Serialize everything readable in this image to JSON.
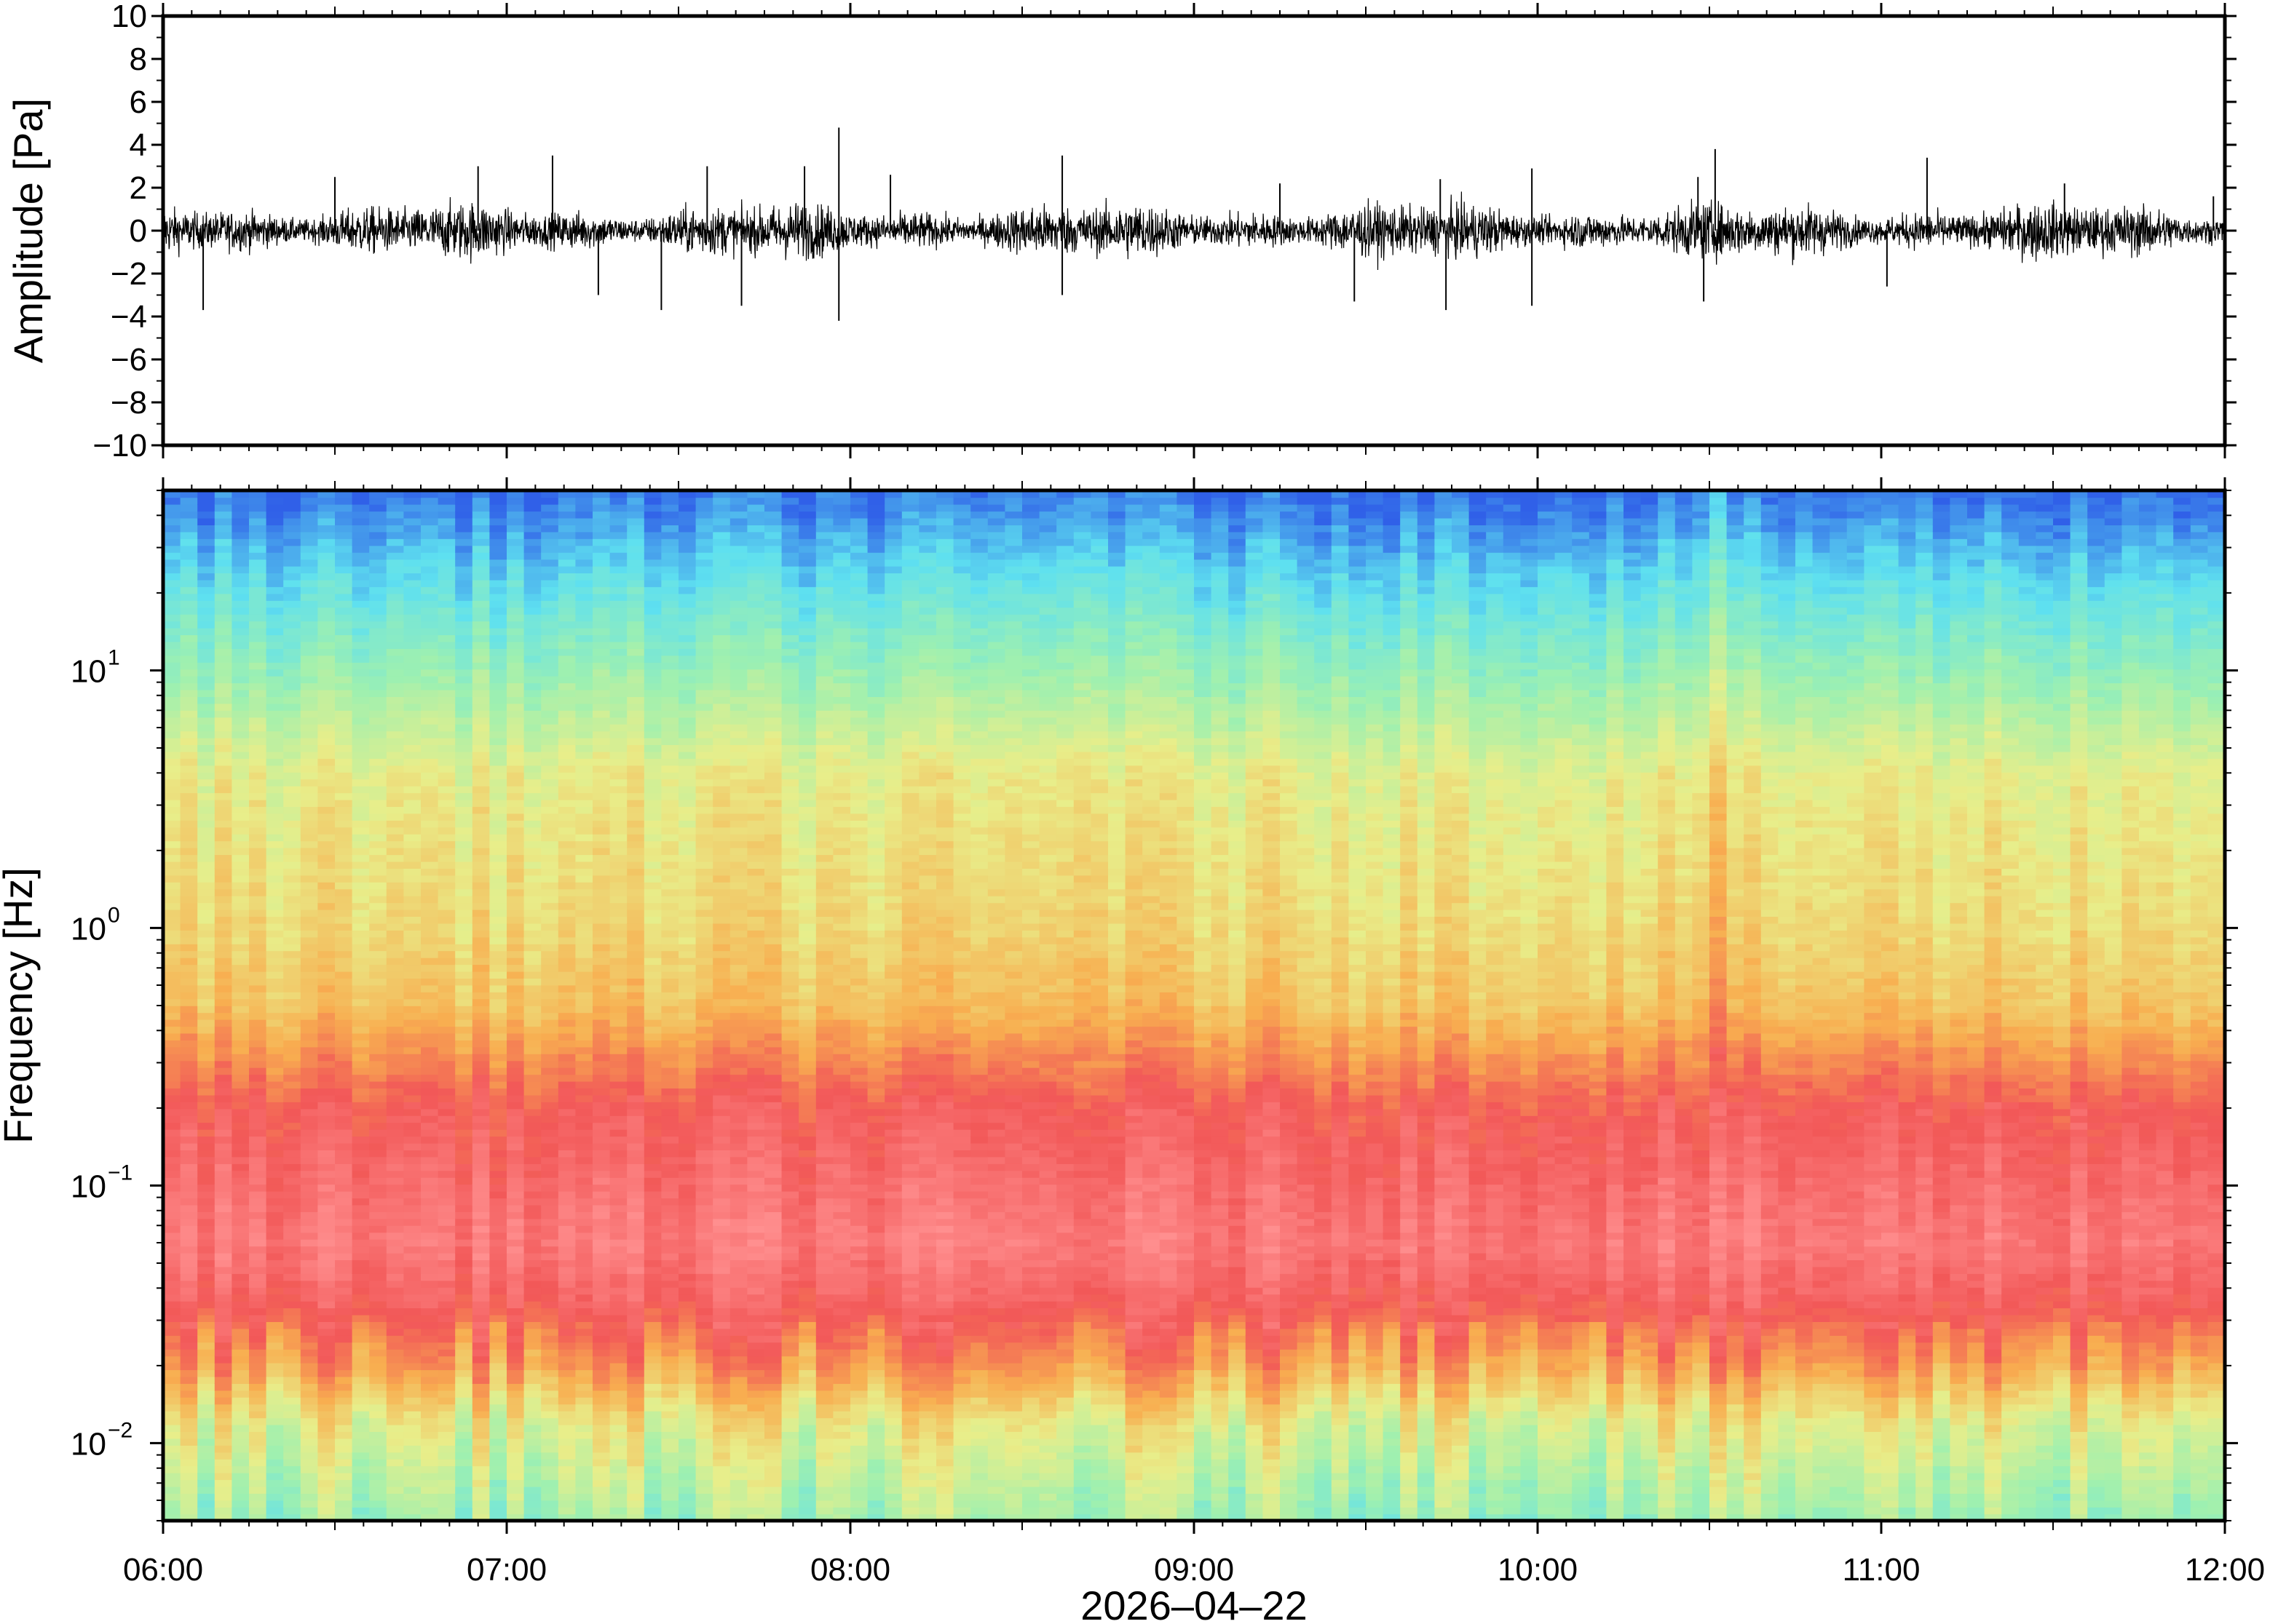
{
  "chart_data": [
    {
      "type": "line",
      "panel": "waveform",
      "ylabel": "Amplitude [Pa]",
      "ylim": [
        -10,
        10
      ],
      "yticks": [
        -10,
        -8,
        -6,
        -4,
        -2,
        0,
        2,
        4,
        6,
        8,
        10
      ],
      "ytick_labels": [
        "−10",
        "−8",
        "−6",
        "−4",
        "−2",
        "0",
        "2",
        "4",
        "6",
        "8",
        "10"
      ],
      "xlim": [
        "06:00",
        "12:00"
      ],
      "noise_envelope_pa": 1.2,
      "series": [
        {
          "color": "#000000",
          "points": [
            {
              "x": "06:07",
              "y": -3.7
            },
            {
              "x": "06:30",
              "y": 2.5
            },
            {
              "x": "06:55",
              "y": 3.0
            },
            {
              "x": "07:08",
              "y": 3.5
            },
            {
              "x": "07:16",
              "y": -3.0
            },
            {
              "x": "07:27",
              "y": -3.7
            },
            {
              "x": "07:35",
              "y": 3.0
            },
            {
              "x": "07:41",
              "y": -3.5
            },
            {
              "x": "07:52",
              "y": 3.0
            },
            {
              "x": "07:58",
              "y": 4.8
            },
            {
              "x": "07:58",
              "y": -4.2
            },
            {
              "x": "08:07",
              "y": 2.6
            },
            {
              "x": "08:37",
              "y": 3.5
            },
            {
              "x": "08:37",
              "y": -3.0
            },
            {
              "x": "09:15",
              "y": 2.2
            },
            {
              "x": "09:28",
              "y": -3.3
            },
            {
              "x": "09:43",
              "y": 2.4
            },
            {
              "x": "09:44",
              "y": -3.7
            },
            {
              "x": "09:59",
              "y": 2.9
            },
            {
              "x": "09:59",
              "y": -3.5
            },
            {
              "x": "10:28",
              "y": 2.5
            },
            {
              "x": "10:31",
              "y": 3.8
            },
            {
              "x": "10:29",
              "y": -3.3
            },
            {
              "x": "11:01",
              "y": -2.6
            },
            {
              "x": "11:08",
              "y": 3.4
            },
            {
              "x": "11:32",
              "y": 2.2
            },
            {
              "x": "11:58",
              "y": 1.6
            }
          ]
        }
      ]
    },
    {
      "type": "heatmap",
      "panel": "spectrogram",
      "ylabel": "Frequency [Hz]",
      "xlabel": "2026–04–22",
      "yscale": "log",
      "ylim": [
        0.005,
        50
      ],
      "ytick_labels": [
        {
          "base": "10",
          "exp": "1",
          "value": 10
        },
        {
          "base": "10",
          "exp": "0",
          "value": 1
        },
        {
          "base": "10",
          "exp": "−1",
          "value": 0.1
        },
        {
          "base": "10",
          "exp": "−2",
          "value": 0.01
        }
      ],
      "x_tick_labels": [
        "06:00",
        "07:00",
        "08:00",
        "09:00",
        "10:00",
        "11:00",
        "12:00"
      ],
      "colormap": [
        "#3060e8",
        "#5ee0f0",
        "#9ef0b0",
        "#e8ee8a",
        "#f8ae50",
        "#f25858",
        "#ff8f8f"
      ],
      "band_profile": [
        {
          "freq_hz": 50,
          "color": "#1430b0"
        },
        {
          "freq_hz": 30,
          "color": "#2f6bf0"
        },
        {
          "freq_hz": 15,
          "color": "#57b4f0"
        },
        {
          "freq_hz": 8,
          "color": "#7ed2e8"
        },
        {
          "freq_hz": 4,
          "color": "#b8eca8"
        },
        {
          "freq_hz": 2,
          "color": "#dff096"
        },
        {
          "freq_hz": 1,
          "color": "#e9ef8c"
        },
        {
          "freq_hz": 0.5,
          "color": "#f4cf70"
        },
        {
          "freq_hz": 0.3,
          "color": "#f88a4e"
        },
        {
          "freq_hz": 0.2,
          "color": "#f25858"
        },
        {
          "freq_hz": 0.1,
          "color": "#f56b70"
        },
        {
          "freq_hz": 0.06,
          "color": "#f87e82"
        },
        {
          "freq_hz": 0.035,
          "color": "#f45b5b"
        },
        {
          "freq_hz": 0.02,
          "color": "#f5b25c"
        },
        {
          "freq_hz": 0.012,
          "color": "#d8ee92"
        },
        {
          "freq_hz": 0.005,
          "color": "#86e4c4"
        }
      ],
      "broadband_events": [
        "08:40",
        "10:29"
      ]
    }
  ]
}
